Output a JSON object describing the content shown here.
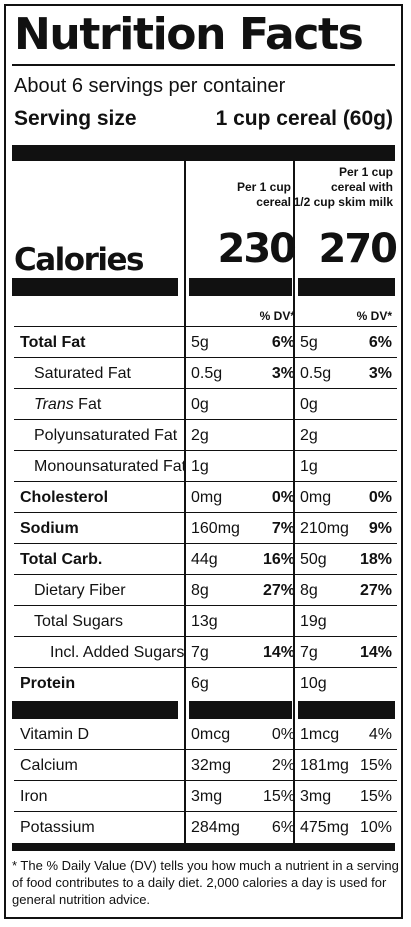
{
  "title": "Nutrition Facts",
  "servings_per_container": "About 6 servings per container",
  "serving_size": {
    "label": "Serving size",
    "value": "1 cup cereal (60g)"
  },
  "columns": {
    "col1_header": [
      "Per 1 cup",
      "cereal"
    ],
    "col2_header": [
      "Per 1 cup",
      "cereal with",
      "1/2 cup skim milk"
    ]
  },
  "calories": {
    "label": "Calories",
    "col1": "230",
    "col2": "270"
  },
  "dv_header": {
    "col1": "% DV*",
    "col2": "% DV*"
  },
  "nutrients": [
    {
      "name": "Total Fat",
      "bold": true,
      "indent": 0,
      "col1_amt": "5g",
      "col1_dv": "6%",
      "col2_amt": "5g",
      "col2_dv": "6%"
    },
    {
      "name": "Saturated Fat",
      "bold": false,
      "indent": 1,
      "col1_amt": "0.5g",
      "col1_dv": "3%",
      "col2_amt": "0.5g",
      "col2_dv": "3%"
    },
    {
      "name_italic": "Trans",
      "name": " Fat",
      "bold": false,
      "indent": 1,
      "col1_amt": "0g",
      "col1_dv": "",
      "col2_amt": "0g",
      "col2_dv": ""
    },
    {
      "name": "Polyunsaturated Fat",
      "bold": false,
      "indent": 1,
      "col1_amt": "2g",
      "col1_dv": "",
      "col2_amt": "2g",
      "col2_dv": ""
    },
    {
      "name": "Monounsaturated Fat",
      "bold": false,
      "indent": 1,
      "col1_amt": "1g",
      "col1_dv": "",
      "col2_amt": "1g",
      "col2_dv": ""
    },
    {
      "name": "Cholesterol",
      "bold": true,
      "indent": 0,
      "col1_amt": "0mg",
      "col1_dv": "0%",
      "col2_amt": "0mg",
      "col2_dv": "0%"
    },
    {
      "name": "Sodium",
      "bold": true,
      "indent": 0,
      "col1_amt": "160mg",
      "col1_dv": "7%",
      "col2_amt": "210mg",
      "col2_dv": "9%"
    },
    {
      "name": "Total Carb.",
      "bold": true,
      "indent": 0,
      "col1_amt": "44g",
      "col1_dv": "16%",
      "col2_amt": "50g",
      "col2_dv": "18%"
    },
    {
      "name": "Dietary Fiber",
      "bold": false,
      "indent": 1,
      "col1_amt": "8g",
      "col1_dv": "27%",
      "col2_amt": "8g",
      "col2_dv": "27%"
    },
    {
      "name": "Total Sugars",
      "bold": false,
      "indent": 1,
      "col1_amt": "13g",
      "col1_dv": "",
      "col2_amt": "19g",
      "col2_dv": ""
    },
    {
      "name": "Incl. Added Sugars",
      "bold": false,
      "indent": 2,
      "col1_amt": "7g",
      "col1_dv": "14%",
      "col2_amt": "7g",
      "col2_dv": "14%"
    },
    {
      "name": "Protein",
      "bold": true,
      "indent": 0,
      "col1_amt": "6g",
      "col1_dv": "",
      "col2_amt": "10g",
      "col2_dv": ""
    }
  ],
  "vitamins": [
    {
      "name": "Vitamin D",
      "col1_amt": "0mcg",
      "col1_dv": "0%",
      "col2_amt": "1mcg",
      "col2_dv": "4%"
    },
    {
      "name": "Calcium",
      "col1_amt": "32mg",
      "col1_dv": "2%",
      "col2_amt": "181mg",
      "col2_dv": "15%"
    },
    {
      "name": "Iron",
      "col1_amt": "3mg",
      "col1_dv": "15%",
      "col2_amt": "3mg",
      "col2_dv": "15%"
    },
    {
      "name": "Potassium",
      "col1_amt": "284mg",
      "col1_dv": "6%",
      "col2_amt": "475mg",
      "col2_dv": "10%"
    }
  ],
  "footnote": "* The % Daily Value (DV) tells you how much a nutrient in a serving of food contributes to a daily diet. 2,000 calories a day is used for general nutrition advice."
}
